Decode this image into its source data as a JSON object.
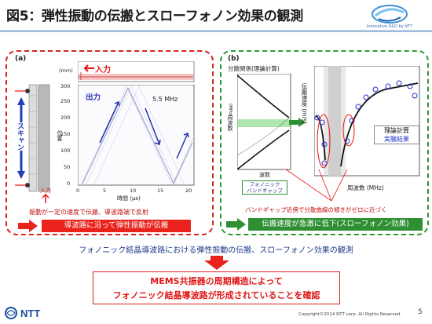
{
  "title": "図5：弾性振動の伝搬とスローフォノン効果の観測",
  "logo": {
    "caption": "Innovative R&D by NTT"
  },
  "panel_a": {
    "label": "(a)",
    "input_top": "入力",
    "mm_unit": "(mm)",
    "output": "出力",
    "freq": "5.5 MHz",
    "scan": "スキャン",
    "position": "位置",
    "input_bottom": "入力",
    "time_axis": "時間 (μs)",
    "x_ticks": [
      "0",
      "5",
      "10",
      "15",
      "20"
    ],
    "y_ticks": [
      "0",
      "50",
      "100",
      "150",
      "200",
      "250",
      "300"
    ],
    "note": "振動が一定の速度で伝搬、導波路端で反射",
    "banner": "導波路に沿って弾性振動が伝搬"
  },
  "panel_b": {
    "label": "(b)",
    "dispersion_title": "分散関係(理論計算)",
    "freq_axis_label": "周波数",
    "freq_unit": "(MHz)",
    "wavenumber": "波数",
    "bandgap": "フォノニック\nバンドギャップ",
    "velocity_axis": "伝搬速度 (m/s)",
    "freq_axis": "周波数 (MHz)",
    "theory": "理論計算",
    "experiment": "実験結果",
    "note": "バンドギャップ近傍で分散曲線の傾きがゼロに近づく",
    "banner": "伝搬速度が急激に低下(スローフォノン効果)"
  },
  "summary": "フォノニック結晶導波路における弾性振動の伝搬、スローフォノン効果の観測",
  "conclusion_line1": "MEMS共振器の周期構造によって",
  "conclusion_line2": "フォノニック結晶導波路が形成されていることを確認",
  "footer": "Copyright©2014 NTT corp. All Rights Reserved.",
  "page_number": "5",
  "colors": {
    "red": "#e9231c",
    "green": "#2f8f33",
    "blue_text": "#1f3a8a"
  }
}
